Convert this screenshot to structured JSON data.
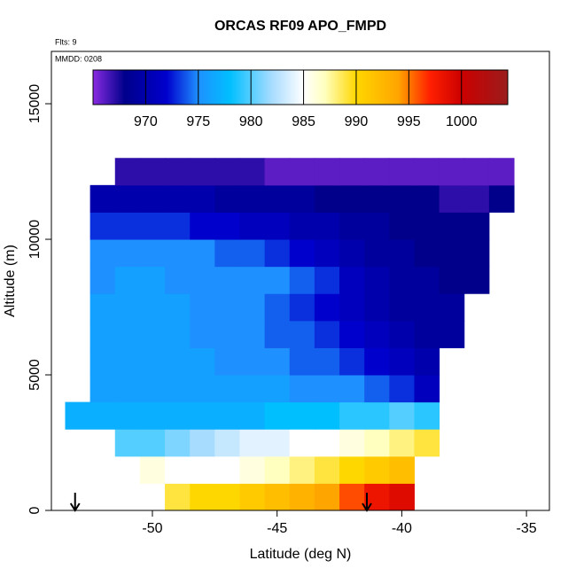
{
  "chart_data": {
    "type": "heatmap",
    "title": "ORCAS RF09 APO_FMPD",
    "annotations": [
      "Flts: 9",
      "MMDD: 0208"
    ],
    "x_label": "Latitude (deg N)",
    "y_label": "Altitude (m)",
    "x": [
      -53,
      -52,
      -51,
      -50,
      -49,
      -48,
      -47,
      -46,
      -45,
      -44,
      -43,
      -42,
      -41,
      -40,
      -39,
      -38,
      -37,
      -36
    ],
    "y": [
      500,
      1500,
      2500,
      3500,
      4500,
      5500,
      6500,
      7500,
      8500,
      9500,
      10500,
      11500,
      12500
    ],
    "values": [
      [
        null,
        null,
        null,
        null,
        989,
        990,
        990,
        991,
        992,
        993,
        994,
        996,
        998,
        999,
        null,
        null,
        null,
        null
      ],
      [
        null,
        null,
        null,
        986,
        985,
        985,
        985,
        986,
        987,
        988,
        989,
        990,
        991,
        992,
        null,
        null,
        null,
        null
      ],
      [
        null,
        null,
        980,
        980,
        981,
        982,
        983,
        984,
        984,
        985,
        985,
        986,
        987,
        988,
        989,
        null,
        null,
        null
      ],
      [
        977,
        977,
        977,
        977,
        977,
        977,
        977,
        977,
        978,
        978,
        978,
        979,
        979,
        980,
        979,
        null,
        null,
        null
      ],
      [
        null,
        976,
        976,
        976,
        976,
        976,
        976,
        976,
        976,
        975,
        975,
        975,
        974,
        973,
        971,
        null,
        null,
        null
      ],
      [
        null,
        976,
        976,
        976,
        976,
        976,
        975,
        975,
        975,
        974,
        974,
        973,
        972,
        971,
        970,
        null,
        null,
        null
      ],
      [
        null,
        976,
        976,
        976,
        976,
        975,
        975,
        975,
        974,
        974,
        973,
        972,
        971,
        970,
        969,
        969,
        null,
        null
      ],
      [
        null,
        976,
        976,
        976,
        976,
        975,
        975,
        975,
        974,
        973,
        972,
        971,
        970,
        969,
        969,
        969,
        null,
        null
      ],
      [
        null,
        975,
        976,
        976,
        975,
        975,
        975,
        975,
        975,
        974,
        973,
        971,
        970,
        969,
        969,
        968,
        968,
        null
      ],
      [
        null,
        975,
        975,
        975,
        975,
        975,
        974,
        974,
        973,
        972,
        971,
        970,
        969,
        969,
        968,
        968,
        968,
        null
      ],
      [
        null,
        973,
        973,
        973,
        973,
        972,
        972,
        971,
        971,
        970,
        970,
        969,
        969,
        968,
        968,
        968,
        968,
        null
      ],
      [
        null,
        970,
        970,
        970,
        970,
        970,
        969,
        969,
        969,
        969,
        968,
        968,
        968,
        968,
        968,
        967,
        967,
        968
      ],
      [
        null,
        null,
        967,
        967,
        967,
        967,
        967,
        967,
        966,
        966,
        966,
        966,
        966,
        966,
        966,
        966,
        966,
        966
      ]
    ],
    "xlim": [
      -54.05,
      -34.08
    ],
    "ylim": [
      0,
      16930
    ],
    "xticks": [
      -50,
      -45,
      -40,
      -35
    ],
    "yticks": [
      0,
      5000,
      10000,
      15000
    ],
    "colorbar_lim": [
      965,
      1004.4
    ],
    "colorbar_ticks": [
      970,
      975,
      980,
      985,
      990,
      995,
      1000
    ],
    "colorscale": [
      [
        965,
        "#8a2be2"
      ],
      [
        968,
        "#00008b"
      ],
      [
        972,
        "#0000cd"
      ],
      [
        975,
        "#1e90ff"
      ],
      [
        978,
        "#00bfff"
      ],
      [
        982,
        "#a8dcff"
      ],
      [
        985,
        "#ffffff"
      ],
      [
        987,
        "#ffffc0"
      ],
      [
        990,
        "#ffd700"
      ],
      [
        994,
        "#ffa500"
      ],
      [
        997,
        "#ff2000"
      ],
      [
        1000,
        "#cc0000"
      ],
      [
        1004.4,
        "#9b1c1c"
      ]
    ],
    "arrows": [
      -53.1,
      -41.4
    ]
  }
}
